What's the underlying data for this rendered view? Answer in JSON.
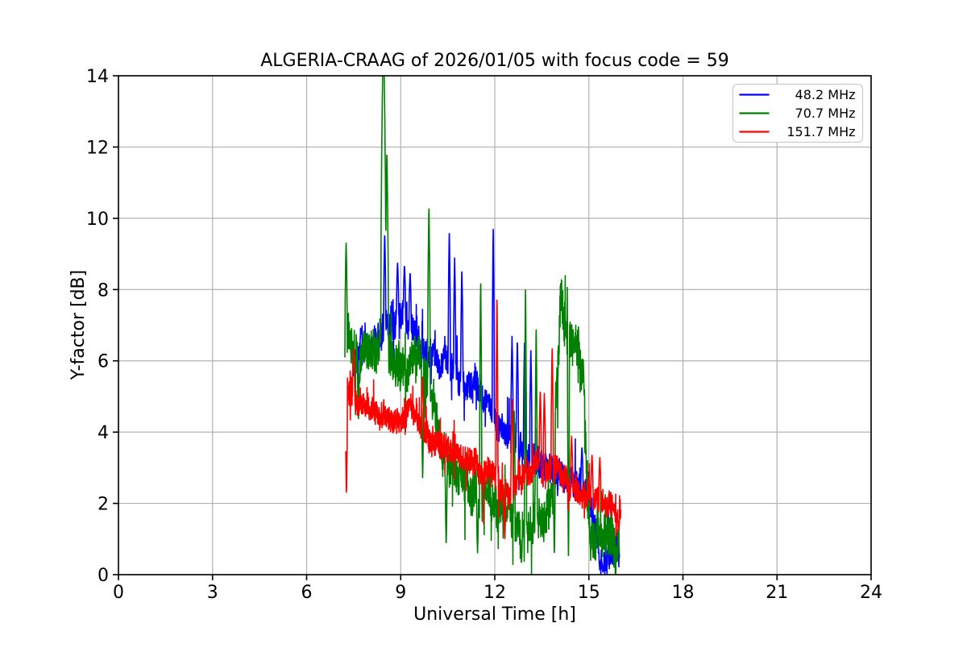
{
  "chart_data": {
    "type": "line",
    "title": "ALGERIA-CRAAG of 2026/01/05 with focus code = 59",
    "xlabel": "Universal Time [h]",
    "ylabel": "Y-factor [dB]",
    "xlim": [
      0,
      24
    ],
    "ylim": [
      0,
      14
    ],
    "xticks": [
      0,
      3,
      6,
      9,
      12,
      15,
      18,
      21,
      24
    ],
    "yticks": [
      0,
      2,
      4,
      6,
      8,
      10,
      12,
      14
    ],
    "grid": true,
    "grid_color": "#b0b0b0",
    "axes_color": "#000000",
    "background": "#ffffff",
    "legend_position": "upper right",
    "legend_edge_color": "#cccccc",
    "sampling_step_h": 0.006,
    "series": [
      {
        "name": "48.2 MHz",
        "color": "#0000ff",
        "x_range": [
          7.48,
          15.98
        ],
        "noise_amp": 0.45,
        "trend": [
          [
            7.48,
            5.9
          ],
          [
            7.7,
            6.3
          ],
          [
            8.0,
            6.5
          ],
          [
            8.3,
            6.6
          ],
          [
            8.6,
            6.9
          ],
          [
            8.9,
            7.2
          ],
          [
            9.15,
            7.3
          ],
          [
            9.4,
            6.9
          ],
          [
            9.7,
            6.3
          ],
          [
            10.0,
            6.2
          ],
          [
            10.3,
            6.0
          ],
          [
            10.7,
            5.7
          ],
          [
            11.0,
            5.4
          ],
          [
            11.3,
            5.2
          ],
          [
            11.6,
            5.0
          ],
          [
            11.9,
            4.6
          ],
          [
            12.2,
            4.2
          ],
          [
            12.5,
            3.9
          ],
          [
            12.8,
            3.6
          ],
          [
            13.1,
            3.3
          ],
          [
            13.4,
            3.1
          ],
          [
            13.7,
            3.1
          ],
          [
            14.0,
            3.0
          ],
          [
            14.3,
            2.8
          ],
          [
            14.6,
            2.6
          ],
          [
            14.9,
            2.3
          ],
          [
            15.1,
            1.9
          ],
          [
            15.25,
            1.1
          ],
          [
            15.4,
            0.5
          ],
          [
            15.55,
            0.3
          ],
          [
            15.7,
            0.5
          ],
          [
            15.85,
            0.8
          ],
          [
            15.98,
            0.5
          ]
        ],
        "spikes": [
          [
            8.49,
            9.6
          ],
          [
            8.9,
            8.8
          ],
          [
            9.12,
            8.7
          ],
          [
            9.3,
            8.5
          ],
          [
            10.55,
            9.7
          ],
          [
            10.72,
            8.9
          ],
          [
            10.95,
            8.6
          ],
          [
            11.95,
            9.7
          ],
          [
            12.55,
            6.7
          ],
          [
            12.72,
            6.6
          ],
          [
            12.95,
            6.6
          ],
          [
            13.15,
            6.3
          ],
          [
            14.78,
            3.6
          ]
        ],
        "dips": [
          [
            15.45,
            0.05
          ],
          [
            15.35,
            0.1
          ]
        ]
      },
      {
        "name": "70.7 MHz",
        "color": "#008000",
        "x_range": [
          7.22,
          15.98
        ],
        "noise_amp": 0.65,
        "trend": [
          [
            7.22,
            6.5
          ],
          [
            7.5,
            6.3
          ],
          [
            7.8,
            6.2
          ],
          [
            8.1,
            6.4
          ],
          [
            8.4,
            6.4
          ],
          [
            8.7,
            6.1
          ],
          [
            9.0,
            5.8
          ],
          [
            9.3,
            6.0
          ],
          [
            9.6,
            6.0
          ],
          [
            9.9,
            5.5
          ],
          [
            10.1,
            4.5
          ],
          [
            10.3,
            3.6
          ],
          [
            10.6,
            3.0
          ],
          [
            11.0,
            2.6
          ],
          [
            11.5,
            2.3
          ],
          [
            12.0,
            2.2
          ],
          [
            12.4,
            2.1
          ],
          [
            12.7,
            1.5
          ],
          [
            13.0,
            1.2
          ],
          [
            13.3,
            1.3
          ],
          [
            13.6,
            1.5
          ],
          [
            13.85,
            2.4
          ],
          [
            13.98,
            6.0
          ],
          [
            14.1,
            7.6
          ],
          [
            14.25,
            7.0
          ],
          [
            14.45,
            6.6
          ],
          [
            14.65,
            6.2
          ],
          [
            14.85,
            5.3
          ],
          [
            14.95,
            2.5
          ],
          [
            15.1,
            1.1
          ],
          [
            15.4,
            0.9
          ],
          [
            15.7,
            1.1
          ],
          [
            15.98,
            0.8
          ]
        ],
        "spikes": [
          [
            7.26,
            9.4,
            0.035
          ],
          [
            8.45,
            15.5,
            0.085
          ],
          [
            8.56,
            11.9,
            0.05
          ],
          [
            9.9,
            10.4,
            0.04
          ],
          [
            11.55,
            8.35,
            0.035
          ],
          [
            12.62,
            4.6,
            0.03
          ],
          [
            12.98,
            8.0,
            0.035
          ],
          [
            13.32,
            7.05,
            0.035
          ]
        ],
        "dips": [
          [
            7.65,
            4.3
          ],
          [
            9.7,
            2.6
          ],
          [
            10.45,
            0.8
          ],
          [
            11.45,
            0.6
          ],
          [
            12.85,
            0.3
          ],
          [
            13.9,
            0.5
          ],
          [
            14.35,
            0.3
          ]
        ]
      },
      {
        "name": "151.7 MHz",
        "color": "#ff0000",
        "x_range": [
          7.25,
          16.02
        ],
        "noise_amp": 0.4,
        "trend": [
          [
            7.25,
            5.2
          ],
          [
            7.45,
            5.0
          ],
          [
            7.8,
            4.8
          ],
          [
            8.2,
            4.6
          ],
          [
            8.6,
            4.4
          ],
          [
            9.0,
            4.3
          ],
          [
            9.3,
            4.6
          ],
          [
            9.6,
            4.3
          ],
          [
            10.0,
            3.7
          ],
          [
            10.5,
            3.5
          ],
          [
            11.0,
            3.3
          ],
          [
            11.5,
            3.0
          ],
          [
            12.0,
            2.6
          ],
          [
            12.3,
            2.4
          ],
          [
            12.6,
            2.5
          ],
          [
            13.0,
            2.8
          ],
          [
            13.4,
            3.0
          ],
          [
            13.8,
            3.0
          ],
          [
            14.2,
            2.8
          ],
          [
            14.5,
            2.4
          ],
          [
            14.8,
            2.2
          ],
          [
            15.1,
            2.1
          ],
          [
            15.4,
            2.0
          ],
          [
            15.7,
            1.9
          ],
          [
            15.9,
            1.9
          ],
          [
            16.02,
            1.5
          ]
        ],
        "spikes": [
          [
            7.5,
            6.4
          ],
          [
            9.7,
            5.6
          ],
          [
            12.07,
            7.9,
            0.03
          ],
          [
            12.55,
            5.0
          ],
          [
            13.45,
            5.2
          ],
          [
            13.58,
            5.1
          ],
          [
            13.83,
            6.45
          ],
          [
            14.45,
            3.9
          ],
          [
            15.1,
            3.4
          ],
          [
            15.35,
            3.3
          ]
        ],
        "dips": [
          [
            7.27,
            2.2,
            0.03
          ],
          [
            12.32,
            1.0
          ],
          [
            15.95,
            1.2
          ]
        ]
      }
    ]
  }
}
